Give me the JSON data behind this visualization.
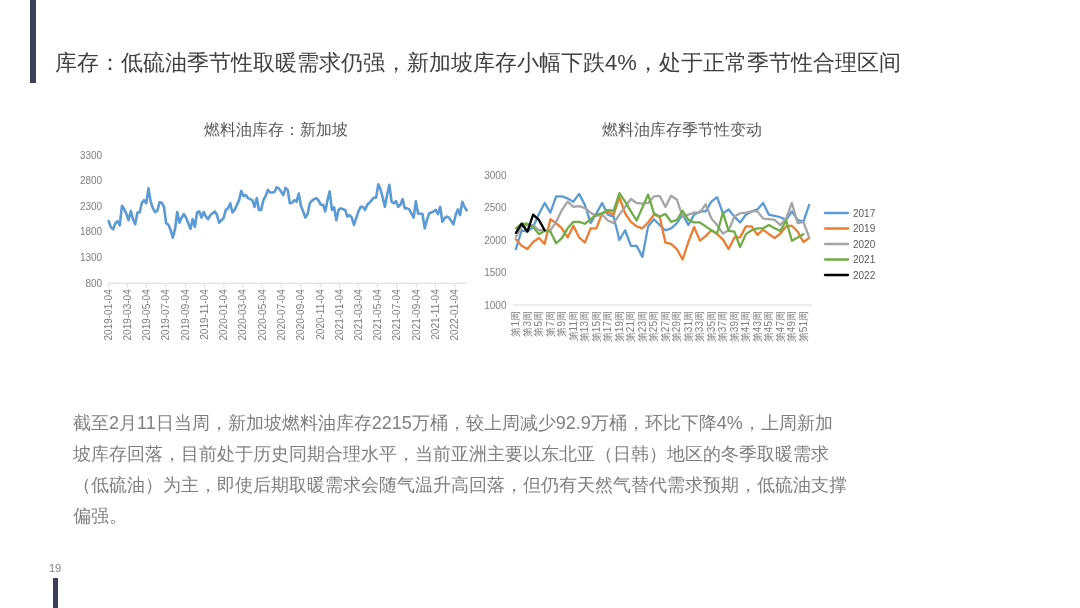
{
  "chart_data": [
    {
      "type": "other",
      "title": "库存：低硫油季节性取暖需求仍强，新加坡库存小幅下跌4%，处于正常季节性合理区间",
      "annotations": [
        "截至2月11日当周，新加坡燃料油库存2215万桶，较上周减少92.9万桶，环比下降4%，上周新加坡库存回落，目前处于历史同期合理水平，当前亚洲主要以东北亚（日韩）地区的冬季取暖需求（低硫油）为主，即使后期取暖需求会随气温升高回落，但仍有天然气替代需求预期，低硫油支撑偏强。",
        "19"
      ]
    },
    {
      "type": "line",
      "title": "燃料油库存：新加坡",
      "x": [
        "2019-01-04",
        "2019-01-11",
        "2019-01-18",
        "2019-01-25",
        "2019-02-01",
        "2019-02-08",
        "2019-02-15",
        "2019-02-22",
        "2019-03-01",
        "2019-03-08",
        "2019-03-15",
        "2019-03-22",
        "2019-03-29",
        "2019-04-05",
        "2019-04-12",
        "2019-04-19",
        "2019-04-26",
        "2019-05-03",
        "2019-05-10",
        "2019-05-17",
        "2019-05-24",
        "2019-05-31",
        "2019-06-07",
        "2019-06-14",
        "2019-06-21",
        "2019-06-28",
        "2019-07-05",
        "2019-07-12",
        "2019-07-19",
        "2019-07-26",
        "2019-08-02",
        "2019-08-09",
        "2019-08-16",
        "2019-08-23",
        "2019-08-30",
        "2019-09-06",
        "2019-09-13",
        "2019-09-20",
        "2019-09-27",
        "2019-10-04",
        "2019-10-11",
        "2019-10-18",
        "2019-10-25",
        "2019-11-01",
        "2019-11-08",
        "2019-11-15",
        "2019-11-22",
        "2019-12-06",
        "2019-12-13",
        "2019-12-20",
        "2019-12-27",
        "2020-01-03",
        "2020-01-10",
        "2020-01-17",
        "2020-01-24",
        "2020-01-31",
        "2020-02-07",
        "2020-02-21",
        "2020-02-28",
        "2020-03-06",
        "2020-03-13",
        "2020-03-20",
        "2020-04-03",
        "2020-04-10",
        "2020-04-17",
        "2020-04-24",
        "2020-05-01",
        "2020-05-08",
        "2020-05-15",
        "2020-05-22",
        "2020-05-29",
        "2020-06-05",
        "2020-06-12",
        "2020-06-19",
        "2020-06-26",
        "2020-07-10",
        "2020-07-17",
        "2020-07-24",
        "2020-07-31",
        "2020-08-07",
        "2020-08-14",
        "2020-08-21",
        "2020-08-28",
        "2020-09-04",
        "2020-09-11",
        "2020-09-18",
        "2020-09-25",
        "2020-10-02",
        "2020-10-09",
        "2020-10-16",
        "2020-10-23",
        "2020-10-30",
        "2020-11-06",
        "2020-11-13",
        "2020-11-20",
        "2020-11-27",
        "2020-12-04",
        "2020-12-11",
        "2020-12-18",
        "2020-12-25",
        "2021-01-01",
        "2021-01-08",
        "2021-01-22",
        "2021-01-29",
        "2021-02-05",
        "2021-02-12",
        "2021-02-19",
        "2021-02-26",
        "2021-03-05",
        "2021-03-12",
        "2021-03-19",
        "2021-03-26",
        "2021-04-02",
        "2021-04-09",
        "2021-04-16",
        "2021-04-23",
        "2021-04-30",
        "2021-05-07",
        "2021-05-14",
        "2021-05-21",
        "2021-05-28",
        "2021-06-04",
        "2021-06-11",
        "2021-06-18",
        "2021-06-25",
        "2021-07-02",
        "2021-07-09",
        "2021-07-16",
        "2021-07-23",
        "2021-07-30",
        "2021-08-06",
        "2021-08-13",
        "2021-08-20",
        "2021-08-27",
        "2021-09-03",
        "2021-09-10",
        "2021-09-24",
        "2021-10-01",
        "2021-10-08",
        "2021-10-15",
        "2021-10-22",
        "2021-10-29",
        "2021-11-05",
        "2021-11-12",
        "2021-11-19",
        "2021-11-26",
        "2021-12-03",
        "2021-12-10",
        "2021-12-17",
        "2021-12-31",
        "2022-01-07",
        "2022-01-14",
        "2022-01-21",
        "2022-01-28",
        "2022-02-04",
        "2022-02-11"
      ],
      "values": [
        2010,
        1890,
        1850,
        1970,
        2010,
        1930,
        2310,
        2250,
        2150,
        2030,
        2210,
        2050,
        1950,
        2180,
        2180,
        2370,
        2420,
        2360,
        2650,
        2390,
        2260,
        2190,
        2210,
        2380,
        2370,
        2290,
        1970,
        1940,
        1840,
        1690,
        1850,
        2190,
        1980,
        2080,
        2150,
        2080,
        1970,
        1860,
        2050,
        1900,
        2180,
        2200,
        2080,
        2190,
        2100,
        2050,
        2130,
        2200,
        2130,
        1980,
        2030,
        2070,
        2230,
        2260,
        2360,
        2180,
        2230,
        2420,
        2600,
        2500,
        2520,
        2460,
        2420,
        2290,
        2460,
        2230,
        2230,
        2420,
        2500,
        2620,
        2570,
        2570,
        2580,
        2670,
        2650,
        2520,
        2660,
        2620,
        2360,
        2370,
        2420,
        2390,
        2550,
        2310,
        2200,
        2080,
        2150,
        2360,
        2410,
        2440,
        2460,
        2410,
        2330,
        2330,
        2200,
        2420,
        2590,
        2230,
        2280,
        2030,
        2230,
        2260,
        2230,
        2100,
        2130,
        2080,
        1940,
        2070,
        2200,
        2290,
        2290,
        2230,
        2330,
        2370,
        2420,
        2470,
        2470,
        2730,
        2630,
        2470,
        2290,
        2530,
        2720,
        2390,
        2360,
        2400,
        2290,
        2330,
        2440,
        2260,
        2260,
        2240,
        2160,
        2080,
        2400,
        2160,
        2150,
        1870,
        2030,
        2160,
        2180,
        2200,
        2230,
        2150,
        2290,
        2000,
        2070,
        2100,
        2080,
        1950,
        2130,
        2240,
        2130,
        2390,
        2290,
        2220
      ],
      "color": "#5b9bd5",
      "xlim": [
        "2019-01-04",
        "2022-02-11"
      ],
      "xticks": [
        "2019-01-04",
        "2019-03-04",
        "2019-05-04",
        "2019-07-04",
        "2019-09-04",
        "2019-11-04",
        "2020-01-04",
        "2020-03-04",
        "2020-05-04",
        "2020-07-04",
        "2020-09-04",
        "2020-11-04",
        "2021-01-04",
        "2021-03-04",
        "2021-05-04",
        "2021-07-04",
        "2021-09-04",
        "2021-11-04",
        "2022-01-04"
      ],
      "ylim": [
        800,
        3300
      ],
      "yticks": [
        800,
        1300,
        1800,
        2300,
        2800,
        3300
      ]
    },
    {
      "type": "line",
      "title": "燃料油库存季节性变动",
      "categories": [
        "第1周",
        null,
        "第3周",
        null,
        "第5周",
        null,
        "第7周",
        null,
        "第9周",
        null,
        "第11周",
        null,
        "第13周",
        null,
        "第15周",
        null,
        "第17周",
        null,
        "第19周",
        null,
        "第21周",
        null,
        "第23周",
        null,
        "第25周",
        null,
        "第27周",
        null,
        "第29周",
        null,
        "第31周",
        null,
        "第33周",
        null,
        "第35周",
        null,
        "第37周",
        null,
        "第39周",
        null,
        "第41周",
        null,
        "第43周",
        null,
        "第45周",
        null,
        "第47周",
        null,
        "第49周",
        null,
        "第51周",
        null
      ],
      "series": [
        {
          "name": "2017",
          "color": "#5b9bd5",
          "values": [
            1860,
            2150,
            2130,
            2200,
            2400,
            2570,
            2420,
            2670,
            2670,
            2640,
            2590,
            2710,
            2540,
            2260,
            2410,
            2570,
            2390,
            2360,
            2000,
            2150,
            1910,
            1910,
            1740,
            2210,
            2320,
            2230,
            2150,
            2180,
            2260,
            2390,
            2230,
            2390,
            2440,
            2440,
            2590,
            2660,
            2410,
            2470,
            2360,
            2270,
            2390,
            2440,
            2470,
            2570,
            2390,
            2370,
            2350,
            2310,
            2440,
            2310,
            2280,
            2540
          ]
        },
        {
          "name": "2019",
          "color": "#ed7d31",
          "values": [
            2010,
            1910,
            1860,
            1970,
            2030,
            1940,
            2320,
            2260,
            2180,
            2040,
            2220,
            2040,
            1960,
            2180,
            2180,
            2410,
            2440,
            2390,
            2660,
            2410,
            2280,
            2210,
            2180,
            2270,
            2390,
            2360,
            1960,
            1940,
            1860,
            1700,
            1970,
            2200,
            1990,
            2060,
            2150,
            2090,
            2010,
            1860,
            2040,
            2040,
            2210,
            2210,
            2080,
            2160,
            2090,
            2030,
            2100,
            2210,
            2220,
            2130,
            1970,
            2030
          ]
        },
        {
          "name": "2020",
          "color": "#a5a5a5",
          "values": [
            2050,
            2200,
            2230,
            2230,
            2150,
            2150,
            2150,
            2280,
            2460,
            2590,
            2510,
            2520,
            2490,
            2420,
            2370,
            2390,
            2300,
            2260,
            2390,
            2510,
            2630,
            2570,
            2560,
            2570,
            2670,
            2680,
            2510,
            2680,
            2620,
            2360,
            2390,
            2420,
            2420,
            2550,
            2330,
            2230,
            2100,
            2150,
            2360,
            2410,
            2420,
            2440,
            2440,
            2330,
            2320,
            2310,
            2230,
            2330,
            2570,
            2260,
            2280,
            2040
          ]
        },
        {
          "name": "2021",
          "color": "#70ad47",
          "values": [
            2180,
            2250,
            2250,
            2200,
            2090,
            2140,
            2130,
            1950,
            2030,
            2180,
            2280,
            2280,
            2250,
            2320,
            2390,
            2410,
            2460,
            2450,
            2720,
            2590,
            2440,
            2300,
            2500,
            2700,
            2410,
            2360,
            2400,
            2280,
            2310,
            2450,
            2310,
            2270,
            2270,
            2210,
            2150,
            2100,
            2420,
            2140,
            2130,
            1890,
            2090,
            2150,
            2180,
            2180,
            2230,
            2180,
            2140,
            2300,
            1990,
            2040,
            2090,
            null
          ]
        },
        {
          "name": "2022",
          "color": "#000000",
          "values": [
            2110,
            2250,
            2130,
            2390,
            2310,
            2150,
            null,
            null,
            null,
            null,
            null,
            null,
            null,
            null,
            null,
            null,
            null,
            null,
            null,
            null,
            null,
            null,
            null,
            null,
            null,
            null,
            null,
            null,
            null,
            null,
            null,
            null,
            null,
            null,
            null,
            null,
            null,
            null,
            null,
            null,
            null,
            null,
            null,
            null,
            null,
            null,
            null,
            null,
            null,
            null,
            null,
            null
          ]
        }
      ],
      "ylim": [
        1000,
        3000
      ],
      "yticks": [
        1000,
        1500,
        2000,
        2500,
        3000
      ],
      "legend": "right"
    }
  ]
}
